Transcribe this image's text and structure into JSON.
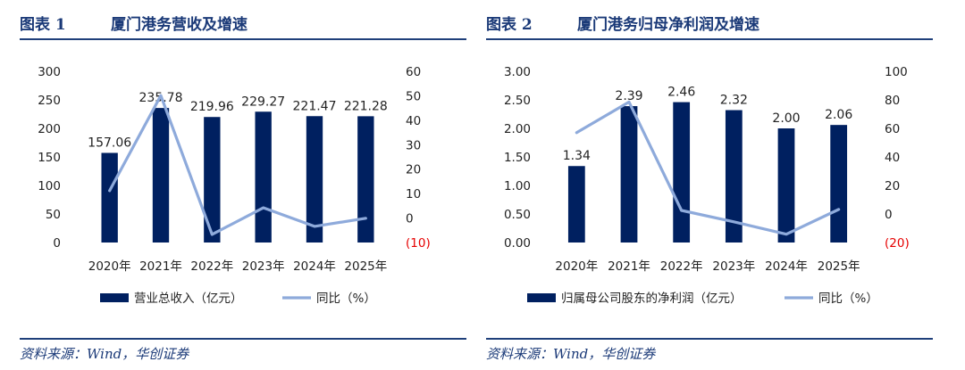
{
  "figures": [
    {
      "label": "图表 1",
      "title": "厦门港务营收及增速",
      "source": "资料来源：Wind，华创证券",
      "chart_data": {
        "type": "bar",
        "categories": [
          "2020年",
          "2021年",
          "2022年",
          "2023年",
          "2024年",
          "2025年"
        ],
        "series": [
          {
            "name": "营业总收入（亿元）",
            "type": "bar",
            "axis": "left",
            "color": "#002060",
            "values": [
              157.06,
              235.78,
              219.96,
              229.27,
              221.47,
              221.28
            ]
          },
          {
            "name": "同比（%）",
            "type": "line",
            "axis": "right",
            "color": "#8eaadb",
            "values": [
              11.2,
              50.1,
              -6.7,
              4.2,
              -3.4,
              -0.1
            ]
          }
        ],
        "data_labels": [
          "157.06",
          "235.78",
          "219.96",
          "229.27",
          "221.47",
          "221.28"
        ],
        "left_axis": {
          "ylim": [
            0,
            300
          ],
          "ticks": [
            "0",
            "50",
            "100",
            "150",
            "200",
            "250",
            "300"
          ]
        },
        "right_axis": {
          "ylim": [
            -10,
            60
          ],
          "ticks": [
            "(10)",
            "0",
            "10",
            "20",
            "30",
            "40",
            "50",
            "60"
          ]
        },
        "legend_position": "bottom",
        "grid": false
      }
    },
    {
      "label": "图表 2",
      "title": "厦门港务归母净利润及增速",
      "source": "资料来源：Wind，华创证券",
      "chart_data": {
        "type": "bar",
        "categories": [
          "2020年",
          "2021年",
          "2022年",
          "2023年",
          "2024年",
          "2025年"
        ],
        "series": [
          {
            "name": "归属母公司股东的净利润（亿元）",
            "type": "bar",
            "axis": "left",
            "color": "#002060",
            "values": [
              1.34,
              2.39,
              2.46,
              2.32,
              2.0,
              2.06
            ]
          },
          {
            "name": "同比（%）",
            "type": "line",
            "axis": "right",
            "color": "#8eaadb",
            "values": [
              57.0,
              78.5,
              2.5,
              -5.5,
              -14.2,
              3.2
            ]
          }
        ],
        "data_labels": [
          "1.34",
          "2.39",
          "2.46",
          "2.32",
          "2.00",
          "2.06"
        ],
        "left_axis": {
          "ylim": [
            0,
            3
          ],
          "ticks": [
            "0.00",
            "0.50",
            "1.00",
            "1.50",
            "2.00",
            "2.50",
            "3.00"
          ]
        },
        "right_axis": {
          "ylim": [
            -20,
            100
          ],
          "ticks": [
            "(20)",
            "0",
            "20",
            "40",
            "60",
            "80",
            "100"
          ]
        },
        "legend_position": "bottom",
        "grid": false
      }
    }
  ]
}
